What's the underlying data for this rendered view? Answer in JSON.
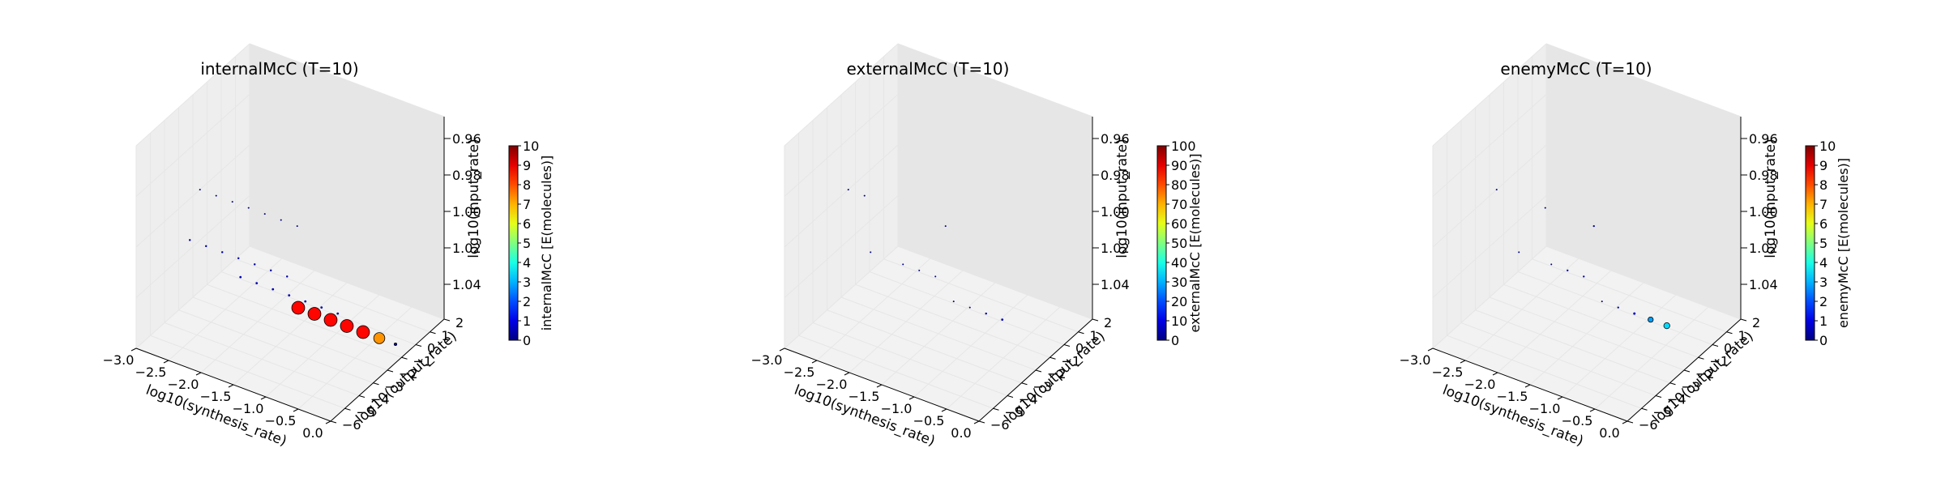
{
  "chart_data": [
    {
      "type": "scatter",
      "title": "internalMcC (T=10)",
      "xlabel": "log10(synthesis_rate)",
      "ylabel": "log10(output_rate)",
      "zlabel": "log10(input_rate)",
      "xticks": [
        "−3.0",
        "−2.5",
        "−2.0",
        "−1.5",
        "−1.0",
        "−0.5",
        "0.0"
      ],
      "yticks": [
        "−6",
        "−5",
        "−4",
        "−3",
        "−2",
        "−1",
        "0",
        "1",
        "2"
      ],
      "zticks": [
        "0.96",
        "0.98",
        "1.00",
        "1.02",
        "1.04"
      ],
      "colorbar_label": "internalMcC [E(molecules)]",
      "colorbar_ticks": [
        "0",
        "1",
        "2",
        "3",
        "4",
        "5",
        "6",
        "7",
        "8",
        "9",
        "10"
      ],
      "colorbar_range": [
        0,
        10
      ],
      "grid": true,
      "points": [
        {
          "x": -3.0,
          "y": -1.5,
          "z": 1.0,
          "value": 0
        },
        {
          "x": -2.75,
          "y": -1.5,
          "z": 1.0,
          "value": 0
        },
        {
          "x": -2.5,
          "y": -1.5,
          "z": 1.0,
          "value": 0
        },
        {
          "x": -2.25,
          "y": -1.5,
          "z": 1.0,
          "value": 0
        },
        {
          "x": -2.0,
          "y": -1.5,
          "z": 1.0,
          "value": 0
        },
        {
          "x": -1.75,
          "y": -1.5,
          "z": 1.0,
          "value": 0
        },
        {
          "x": -1.5,
          "y": -1.5,
          "z": 1.0,
          "value": 0
        },
        {
          "x": -2.5,
          "y": -4.5,
          "z": 1.0,
          "value": 0.3
        },
        {
          "x": -2.25,
          "y": -4.5,
          "z": 1.0,
          "value": 0.3
        },
        {
          "x": -2.0,
          "y": -4.5,
          "z": 1.0,
          "value": 0.3
        },
        {
          "x": -1.75,
          "y": -4.5,
          "z": 1.0,
          "value": 0.3
        },
        {
          "x": -1.5,
          "y": -4.5,
          "z": 1.0,
          "value": 0.3
        },
        {
          "x": -1.25,
          "y": -4.5,
          "z": 1.0,
          "value": 0.3
        },
        {
          "x": -1.0,
          "y": -4.5,
          "z": 1.0,
          "value": 0.3
        },
        {
          "x": -1.5,
          "y": -5.5,
          "z": 1.0,
          "value": 0.5
        },
        {
          "x": -1.25,
          "y": -5.5,
          "z": 1.0,
          "value": 0.5
        },
        {
          "x": -1.0,
          "y": -5.5,
          "z": 1.0,
          "value": 0.5
        },
        {
          "x": -0.75,
          "y": -5.5,
          "z": 1.0,
          "value": 0.5
        },
        {
          "x": -0.5,
          "y": -5.5,
          "z": 1.0,
          "value": 0.5
        },
        {
          "x": -0.25,
          "y": -5.5,
          "z": 1.0,
          "value": 0.5
        },
        {
          "x": 0.0,
          "y": -5.5,
          "z": 1.0,
          "value": 0.5
        },
        {
          "x": -0.5,
          "y": -6.0,
          "z": 1.0,
          "value": 8.7
        },
        {
          "x": -0.25,
          "y": -6.0,
          "z": 1.0,
          "value": 8.7
        },
        {
          "x": 0.0,
          "y": -6.0,
          "z": 1.0,
          "value": 8.7
        },
        {
          "x": 0.25,
          "y": -6.0,
          "z": 1.0,
          "value": 8.7
        },
        {
          "x": 0.5,
          "y": -6.0,
          "z": 1.0,
          "value": 8.7
        },
        {
          "x": 0.75,
          "y": -6.0,
          "z": 1.0,
          "value": 7.3
        },
        {
          "x": 1.0,
          "y": -6.0,
          "z": 1.0,
          "value": 0.8
        }
      ]
    },
    {
      "type": "scatter",
      "title": "externalMcC (T=10)",
      "xlabel": "log10(synthesis_rate)",
      "ylabel": "log10(output_rate)",
      "zlabel": "log10(input_rate)",
      "xticks": [
        "−3.0",
        "−2.5",
        "−2.0",
        "−1.5",
        "−1.0",
        "−0.5",
        "0.0"
      ],
      "yticks": [
        "−6",
        "−5",
        "−4",
        "−3",
        "−2",
        "−1",
        "0",
        "1",
        "2"
      ],
      "zticks": [
        "0.96",
        "0.98",
        "1.00",
        "1.02",
        "1.04"
      ],
      "colorbar_label": "externalMcC [E(molecules)]",
      "colorbar_ticks": [
        "0",
        "10",
        "20",
        "30",
        "40",
        "50",
        "60",
        "70",
        "80",
        "90",
        "100"
      ],
      "colorbar_range": [
        0,
        100
      ],
      "grid": true,
      "points": [
        {
          "x": -3.0,
          "y": -1.5,
          "z": 1.0,
          "value": 0
        },
        {
          "x": -2.75,
          "y": -1.5,
          "z": 1.0,
          "value": 0
        },
        {
          "x": -1.5,
          "y": -1.5,
          "z": 1.0,
          "value": 0
        },
        {
          "x": -2.0,
          "y": -4.5,
          "z": 1.0,
          "value": 0
        },
        {
          "x": -1.5,
          "y": -4.5,
          "z": 1.0,
          "value": 0
        },
        {
          "x": -1.25,
          "y": -4.5,
          "z": 1.0,
          "value": 0
        },
        {
          "x": -1.0,
          "y": -4.5,
          "z": 1.0,
          "value": 0
        },
        {
          "x": -0.5,
          "y": -5.5,
          "z": 1.0,
          "value": 0
        },
        {
          "x": -0.25,
          "y": -5.5,
          "z": 1.0,
          "value": 0
        },
        {
          "x": 0.0,
          "y": -5.5,
          "z": 1.0,
          "value": 3
        },
        {
          "x": 0.25,
          "y": -5.5,
          "z": 1.0,
          "value": 5
        }
      ]
    },
    {
      "type": "scatter",
      "title": "enemyMcC (T=10)",
      "xlabel": "log10(synthesis_rate)",
      "ylabel": "log10(output_rate)",
      "zlabel": "log10(input_rate)",
      "xticks": [
        "−3.0",
        "−2.5",
        "−2.0",
        "−1.5",
        "−1.0",
        "−0.5",
        "0.0"
      ],
      "yticks": [
        "−6",
        "−5",
        "−4",
        "−3",
        "−2",
        "−1",
        "0",
        "1",
        "2"
      ],
      "zticks": [
        "0.96",
        "0.98",
        "1.00",
        "1.02",
        "1.04"
      ],
      "colorbar_label": "enemyMcC [E(molecules)]",
      "colorbar_ticks": [
        "0",
        "1",
        "2",
        "3",
        "4",
        "5",
        "6",
        "7",
        "8",
        "9",
        "10"
      ],
      "colorbar_range": [
        0,
        10
      ],
      "grid": true,
      "points": [
        {
          "x": -3.0,
          "y": -1.5,
          "z": 1.0,
          "value": 0
        },
        {
          "x": -2.25,
          "y": -1.5,
          "z": 1.0,
          "value": 0
        },
        {
          "x": -1.5,
          "y": -1.5,
          "z": 1.0,
          "value": 0.2
        },
        {
          "x": -2.0,
          "y": -4.5,
          "z": 1.0,
          "value": 0
        },
        {
          "x": -1.5,
          "y": -4.5,
          "z": 1.0,
          "value": 0
        },
        {
          "x": -1.25,
          "y": -4.5,
          "z": 1.0,
          "value": 0.2
        },
        {
          "x": -1.0,
          "y": -4.5,
          "z": 1.0,
          "value": 0.2
        },
        {
          "x": -0.5,
          "y": -5.5,
          "z": 1.0,
          "value": 0
        },
        {
          "x": -0.25,
          "y": -5.5,
          "z": 1.0,
          "value": 0.2
        },
        {
          "x": 0.0,
          "y": -5.5,
          "z": 1.0,
          "value": 0.6
        },
        {
          "x": 0.25,
          "y": -5.5,
          "z": 1.0,
          "value": 2.8
        },
        {
          "x": 0.5,
          "y": -5.5,
          "z": 1.0,
          "value": 3.4
        }
      ]
    }
  ]
}
